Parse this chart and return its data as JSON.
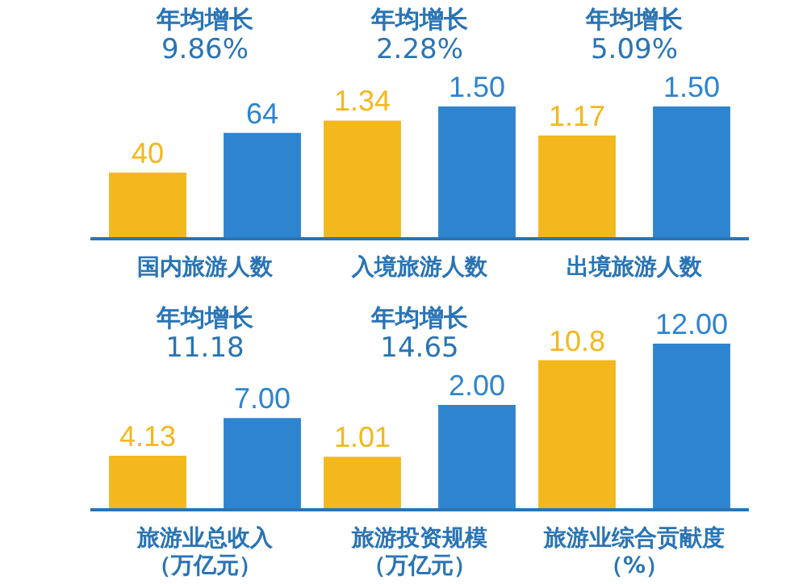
{
  "chart_data": [
    {
      "type": "bar",
      "title": "年均增长",
      "subtitle": "9.86%",
      "xlabel": "国内旅游人数",
      "categories": [
        null,
        null
      ],
      "values": [
        40,
        64
      ],
      "value_labels": [
        "40",
        "64"
      ],
      "colors": [
        "#f2b81e",
        "#2e84cf"
      ]
    },
    {
      "type": "bar",
      "title": "年均增长",
      "subtitle": "2.28%",
      "xlabel": "入境旅游人数",
      "categories": [
        null,
        null
      ],
      "values": [
        1.34,
        1.5
      ],
      "value_labels": [
        "1.34",
        "1.50"
      ],
      "colors": [
        "#f2b81e",
        "#2e84cf"
      ]
    },
    {
      "type": "bar",
      "title": "年均增长",
      "subtitle": "5.09%",
      "xlabel": "出境旅游人数",
      "categories": [
        null,
        null
      ],
      "values": [
        1.17,
        1.5
      ],
      "value_labels": [
        "1.17",
        "1.50"
      ],
      "colors": [
        "#f2b81e",
        "#2e84cf"
      ]
    },
    {
      "type": "bar",
      "title": "年均增长",
      "subtitle": "11.18",
      "xlabel": "旅游业总收入（万亿元）",
      "categories": [
        null,
        null
      ],
      "values": [
        4.13,
        7.0
      ],
      "value_labels": [
        "4.13",
        "7.00"
      ],
      "colors": [
        "#f2b81e",
        "#2e84cf"
      ]
    },
    {
      "type": "bar",
      "title": "年均增长",
      "subtitle": "14.65",
      "xlabel": "旅游投资规模（万亿元）",
      "categories": [
        null,
        null
      ],
      "values": [
        1.01,
        2.0
      ],
      "value_labels": [
        "1.01",
        "2.00"
      ],
      "colors": [
        "#f2b81e",
        "#2e84cf"
      ]
    },
    {
      "type": "bar",
      "xlabel": "旅游业综合贡献度（%）",
      "categories": [
        null,
        null
      ],
      "values": [
        10.8,
        12.0
      ],
      "value_labels": [
        "10.8",
        "12.00"
      ],
      "colors": [
        "#f2b81e",
        "#2e84cf"
      ]
    }
  ]
}
